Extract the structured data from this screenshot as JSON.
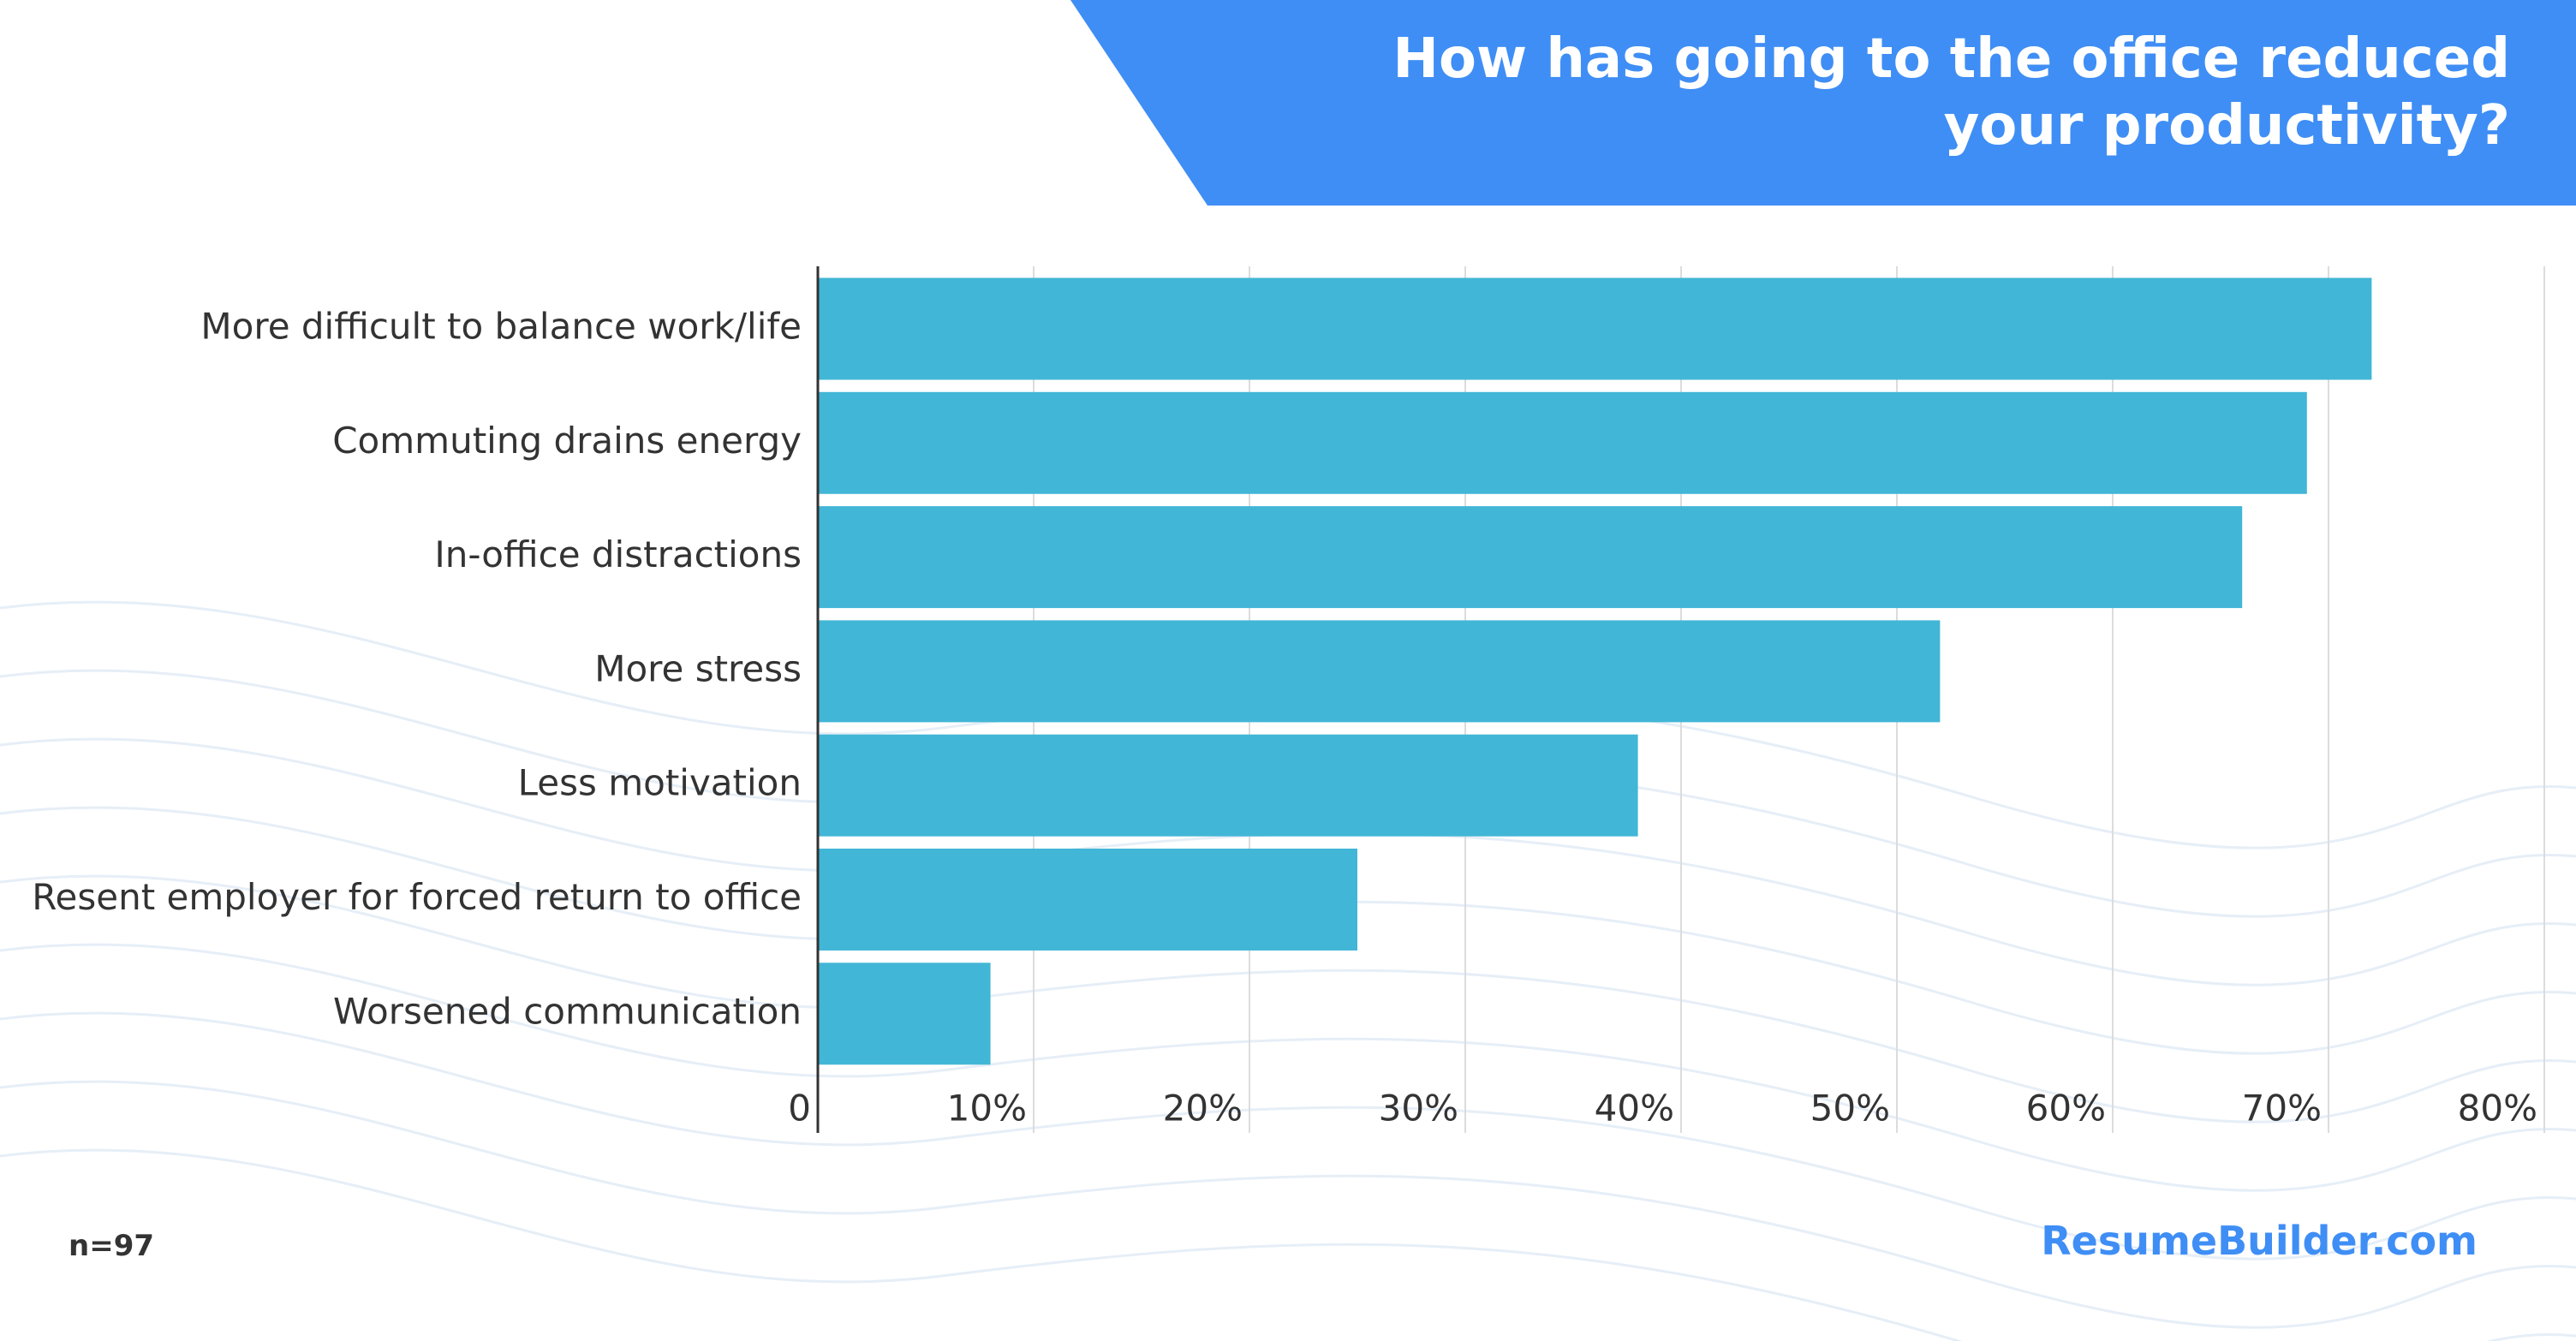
{
  "chart_data": {
    "type": "bar",
    "orientation": "horizontal",
    "title": "How has going to the office reduced your productivity?",
    "categories": [
      "More difficult to balance work/life",
      "Commuting drains energy",
      "In-office distractions",
      "More stress",
      "Less motivation",
      "Resent employer for forced return to office",
      "Worsened communication"
    ],
    "values": [
      72,
      69,
      66,
      52,
      38,
      25,
      8
    ],
    "color": "#42b6d6",
    "xlim": [
      0,
      80
    ],
    "xticks": [
      0,
      {
        "value": 10,
        "label": "10%"
      },
      {
        "value": 20,
        "label": "20%"
      },
      {
        "value": 30,
        "label": "30%"
      },
      {
        "value": 40,
        "label": "40%"
      },
      {
        "value": 50,
        "label": "50%"
      },
      {
        "value": 60,
        "label": "60%"
      },
      {
        "value": 70,
        "label": "70%"
      },
      {
        "value": 80,
        "label": "80%"
      }
    ],
    "grid": true,
    "note": "n=97",
    "source": "ResumeBuilder.com"
  }
}
